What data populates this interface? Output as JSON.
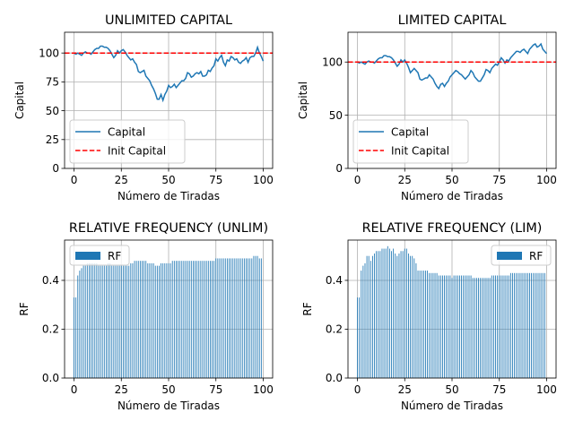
{
  "chart_data": [
    {
      "type": "line",
      "title": "UNLIMITED CAPITAL",
      "xlabel": "Número de Tiradas",
      "ylabel": "Capital",
      "xlim": [
        -5,
        105
      ],
      "ylim": [
        0,
        118
      ],
      "xticks": [
        0,
        25,
        50,
        75,
        100
      ],
      "yticks": [
        0,
        25,
        50,
        75,
        100
      ],
      "grid": true,
      "legend": "lower-left",
      "series": [
        {
          "name": "Capital",
          "color": "#1f77b4",
          "style": "solid",
          "x": [
            0,
            1,
            2,
            3,
            4,
            5,
            6,
            7,
            8,
            9,
            10,
            11,
            12,
            13,
            14,
            15,
            16,
            17,
            18,
            19,
            20,
            21,
            22,
            23,
            24,
            25,
            26,
            27,
            28,
            29,
            30,
            31,
            32,
            33,
            34,
            35,
            36,
            37,
            38,
            39,
            40,
            41,
            42,
            43,
            44,
            45,
            46,
            47,
            48,
            49,
            50,
            51,
            52,
            53,
            54,
            55,
            56,
            57,
            58,
            59,
            60,
            61,
            62,
            63,
            64,
            65,
            66,
            67,
            68,
            69,
            70,
            71,
            72,
            73,
            74,
            75,
            76,
            77,
            78,
            79,
            80,
            81,
            82,
            83,
            84,
            85,
            86,
            87,
            88,
            89,
            90,
            91,
            92,
            93,
            94,
            95,
            96,
            97,
            98,
            99,
            100
          ],
          "y": [
            100,
            99,
            100,
            99,
            98,
            100,
            101,
            100,
            100,
            99,
            101,
            103,
            104,
            104,
            106,
            106,
            105,
            105,
            104,
            102,
            99,
            96,
            98,
            102,
            100,
            102,
            103,
            101,
            98,
            96,
            94,
            95,
            92,
            90,
            84,
            83,
            84,
            85,
            80,
            78,
            76,
            72,
            69,
            65,
            60,
            60,
            64,
            59,
            64,
            67,
            72,
            70,
            71,
            73,
            70,
            72,
            74,
            76,
            76,
            78,
            83,
            82,
            79,
            80,
            82,
            83,
            82,
            84,
            80,
            80,
            81,
            85,
            84,
            87,
            89,
            95,
            93,
            96,
            98,
            92,
            89,
            94,
            93,
            97,
            96,
            94,
            95,
            92,
            91,
            93,
            94,
            96,
            92,
            96,
            97,
            97,
            100,
            105,
            100,
            97,
            93
          ]
        },
        {
          "name": "Init Capital",
          "color": "#ff0000",
          "style": "dashed",
          "x": [
            -5,
            105
          ],
          "y": [
            100,
            100
          ]
        }
      ]
    },
    {
      "type": "line",
      "title": "LIMITED CAPITAL",
      "xlabel": "Número de Tiradas",
      "ylabel": "Capital",
      "xlim": [
        -5,
        105
      ],
      "ylim": [
        0,
        128
      ],
      "xticks": [
        0,
        25,
        50,
        75,
        100
      ],
      "yticks": [
        0,
        50,
        100
      ],
      "grid": true,
      "legend": "lower-left",
      "series": [
        {
          "name": "Capital",
          "color": "#1f77b4",
          "style": "solid",
          "x": [
            0,
            1,
            2,
            3,
            4,
            5,
            6,
            7,
            8,
            9,
            10,
            11,
            12,
            13,
            14,
            15,
            16,
            17,
            18,
            19,
            20,
            21,
            22,
            23,
            24,
            25,
            26,
            27,
            28,
            29,
            30,
            31,
            32,
            33,
            34,
            35,
            36,
            37,
            38,
            39,
            40,
            41,
            42,
            43,
            44,
            45,
            46,
            47,
            48,
            49,
            50,
            51,
            52,
            53,
            54,
            55,
            56,
            57,
            58,
            59,
            60,
            61,
            62,
            63,
            64,
            65,
            66,
            67,
            68,
            69,
            70,
            71,
            72,
            73,
            74,
            75,
            76,
            77,
            78,
            79,
            80,
            81,
            82,
            83,
            84,
            85,
            86,
            87,
            88,
            89,
            90,
            91,
            92,
            93,
            94,
            95,
            96,
            97,
            98,
            99,
            100
          ],
          "y": [
            100,
            99,
            100,
            99,
            98,
            100,
            101,
            100,
            100,
            99,
            101,
            103,
            104,
            104,
            106,
            106,
            105,
            105,
            104,
            102,
            99,
            96,
            98,
            102,
            100,
            102,
            99,
            95,
            90,
            92,
            94,
            92,
            90,
            84,
            83,
            84,
            85,
            85,
            88,
            86,
            84,
            80,
            77,
            75,
            79,
            80,
            77,
            80,
            82,
            86,
            88,
            90,
            92,
            91,
            89,
            88,
            86,
            84,
            86,
            88,
            92,
            90,
            86,
            84,
            82,
            82,
            85,
            88,
            93,
            92,
            90,
            94,
            96,
            98,
            97,
            100,
            104,
            102,
            99,
            102,
            101,
            104,
            106,
            108,
            110,
            110,
            109,
            111,
            112,
            110,
            108,
            112,
            114,
            116,
            117,
            114,
            115,
            117,
            112,
            110,
            108
          ]
        },
        {
          "name": "Init Capital",
          "color": "#ff0000",
          "style": "dashed",
          "x": [
            -5,
            105
          ],
          "y": [
            100,
            100
          ]
        }
      ]
    },
    {
      "type": "bar",
      "title": "RELATIVE FREQUENCY (UNLIM)",
      "xlabel": "Número de Tiradas",
      "ylabel": "RF",
      "xlim": [
        -5,
        105
      ],
      "ylim": [
        0,
        0.565
      ],
      "xticks": [
        0,
        25,
        50,
        75,
        100
      ],
      "yticks": [
        0.0,
        0.2,
        0.4
      ],
      "ytick_labels": [
        "0.0",
        "0.2",
        "0.4"
      ],
      "grid": true,
      "legend": "top-left",
      "series": [
        {
          "name": "RF",
          "color": "#1f77b4",
          "x": [
            0,
            1,
            2,
            3,
            4,
            5,
            6,
            7,
            8,
            9,
            10,
            11,
            12,
            13,
            14,
            15,
            16,
            17,
            18,
            19,
            20,
            21,
            22,
            23,
            24,
            25,
            26,
            27,
            28,
            29,
            30,
            31,
            32,
            33,
            34,
            35,
            36,
            37,
            38,
            39,
            40,
            41,
            42,
            43,
            44,
            45,
            46,
            47,
            48,
            49,
            50,
            51,
            52,
            53,
            54,
            55,
            56,
            57,
            58,
            59,
            60,
            61,
            62,
            63,
            64,
            65,
            66,
            67,
            68,
            69,
            70,
            71,
            72,
            73,
            74,
            75,
            76,
            77,
            78,
            79,
            80,
            81,
            82,
            83,
            84,
            85,
            86,
            87,
            88,
            89,
            90,
            91,
            92,
            93,
            94,
            95,
            96,
            97,
            98,
            99
          ],
          "values": [
            0.33,
            0.33,
            0.42,
            0.44,
            0.45,
            0.46,
            0.46,
            0.47,
            0.47,
            0.47,
            0.47,
            0.47,
            0.47,
            0.46,
            0.46,
            0.46,
            0.46,
            0.46,
            0.47,
            0.47,
            0.46,
            0.46,
            0.46,
            0.46,
            0.46,
            0.46,
            0.46,
            0.46,
            0.46,
            0.46,
            0.47,
            0.47,
            0.48,
            0.48,
            0.48,
            0.48,
            0.48,
            0.48,
            0.48,
            0.47,
            0.47,
            0.47,
            0.47,
            0.46,
            0.46,
            0.46,
            0.47,
            0.47,
            0.47,
            0.47,
            0.47,
            0.47,
            0.48,
            0.48,
            0.48,
            0.48,
            0.48,
            0.48,
            0.48,
            0.48,
            0.48,
            0.48,
            0.48,
            0.48,
            0.48,
            0.48,
            0.48,
            0.48,
            0.48,
            0.48,
            0.48,
            0.48,
            0.48,
            0.48,
            0.48,
            0.49,
            0.49,
            0.49,
            0.49,
            0.49,
            0.49,
            0.49,
            0.49,
            0.49,
            0.49,
            0.49,
            0.49,
            0.49,
            0.49,
            0.49,
            0.49,
            0.49,
            0.49,
            0.49,
            0.49,
            0.5,
            0.5,
            0.5,
            0.49,
            0.49
          ]
        }
      ]
    },
    {
      "type": "bar",
      "title": "RELATIVE FREQUENCY (LIM)",
      "xlabel": "Número de Tiradas",
      "ylabel": "RF",
      "xlim": [
        -5,
        105
      ],
      "ylim": [
        0,
        0.565
      ],
      "xticks": [
        0,
        25,
        50,
        75,
        100
      ],
      "yticks": [
        0.0,
        0.2,
        0.4
      ],
      "ytick_labels": [
        "0.0",
        "0.2",
        "0.4"
      ],
      "grid": true,
      "legend": "top-right",
      "series": [
        {
          "name": "RF",
          "color": "#1f77b4",
          "x": [
            0,
            1,
            2,
            3,
            4,
            5,
            6,
            7,
            8,
            9,
            10,
            11,
            12,
            13,
            14,
            15,
            16,
            17,
            18,
            19,
            20,
            21,
            22,
            23,
            24,
            25,
            26,
            27,
            28,
            29,
            30,
            31,
            32,
            33,
            34,
            35,
            36,
            37,
            38,
            39,
            40,
            41,
            42,
            43,
            44,
            45,
            46,
            47,
            48,
            49,
            50,
            51,
            52,
            53,
            54,
            55,
            56,
            57,
            58,
            59,
            60,
            61,
            62,
            63,
            64,
            65,
            66,
            67,
            68,
            69,
            70,
            71,
            72,
            73,
            74,
            75,
            76,
            77,
            78,
            79,
            80,
            81,
            82,
            83,
            84,
            85,
            86,
            87,
            88,
            89,
            90,
            91,
            92,
            93,
            94,
            95,
            96,
            97,
            98,
            99
          ],
          "values": [
            0.33,
            0.33,
            0.44,
            0.46,
            0.47,
            0.5,
            0.5,
            0.48,
            0.5,
            0.51,
            0.52,
            0.52,
            0.52,
            0.53,
            0.53,
            0.53,
            0.54,
            0.53,
            0.52,
            0.53,
            0.51,
            0.5,
            0.51,
            0.52,
            0.52,
            0.53,
            0.53,
            0.51,
            0.5,
            0.5,
            0.49,
            0.47,
            0.44,
            0.44,
            0.44,
            0.44,
            0.44,
            0.44,
            0.43,
            0.43,
            0.43,
            0.43,
            0.43,
            0.42,
            0.42,
            0.42,
            0.42,
            0.42,
            0.42,
            0.42,
            0.41,
            0.42,
            0.42,
            0.42,
            0.42,
            0.42,
            0.42,
            0.42,
            0.42,
            0.42,
            0.42,
            0.41,
            0.41,
            0.41,
            0.41,
            0.41,
            0.41,
            0.41,
            0.41,
            0.41,
            0.41,
            0.42,
            0.42,
            0.42,
            0.42,
            0.42,
            0.42,
            0.42,
            0.42,
            0.42,
            0.42,
            0.43,
            0.43,
            0.43,
            0.43,
            0.43,
            0.43,
            0.43,
            0.43,
            0.43,
            0.43,
            0.43,
            0.43,
            0.43,
            0.43,
            0.43,
            0.43,
            0.43,
            0.43,
            0.43
          ]
        }
      ]
    }
  ]
}
